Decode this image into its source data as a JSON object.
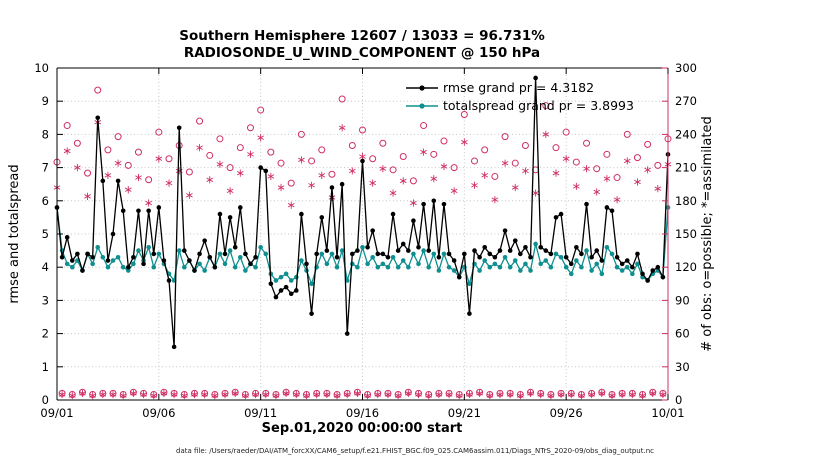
{
  "caption": "data file: /Users/raeder/DAI/ATM_forcXX/CAM6_setup/f.e21.FHIST_BGC.f09_025.CAM6assim.011/Diags_NTrS_2020-09/obs_diag_output.nc",
  "colors": {
    "rmse": "#000000",
    "totalspread": "#0f8f8f",
    "obs": "#ce2f63",
    "legend_text": "#2222cc",
    "grid": "#c6c6c6"
  },
  "chart_data": {
    "type": "line",
    "title": "Southern Hemisphere 12607 / 13033 = 96.731%",
    "subtitle": "RADIOSONDE_U_WIND_COMPONENT @ 150 hPa",
    "ylabel_left": "rmse and totalspread",
    "ylabel_right": "# of obs: o=possible; *=assimilated",
    "xlabel": "Sep.01,2020 00:00:00 start",
    "x_tick_labels": [
      "09/01",
      "09/06",
      "09/11",
      "09/16",
      "09/21",
      "09/26",
      "10/01"
    ],
    "x_tick_days": [
      0,
      5,
      10,
      15,
      20,
      25,
      30
    ],
    "x_range_days": [
      0,
      30
    ],
    "points_per_day": 4,
    "ylim_left": [
      0,
      10
    ],
    "ylim_right": [
      0,
      300
    ],
    "y_left_ticks": [
      0,
      1,
      2,
      3,
      4,
      5,
      6,
      7,
      8,
      9,
      10
    ],
    "y_right_ticks": [
      0,
      30,
      60,
      90,
      120,
      150,
      180,
      210,
      240,
      270,
      300
    ],
    "grid": true,
    "legend": {
      "position": "top-right-inside",
      "entries": [
        {
          "series": "rmse",
          "label": "rmse grand pr = 4.3182"
        },
        {
          "series": "totalspread",
          "label": "totalspread grand pr = 3.8993"
        }
      ]
    },
    "series": [
      {
        "name": "rmse",
        "axis": "left",
        "marker": "dot",
        "color": "#000000",
        "values": [
          5.8,
          4.3,
          4.9,
          4.2,
          4.4,
          3.9,
          4.4,
          4.3,
          8.5,
          6.6,
          4.2,
          5.0,
          6.6,
          5.7,
          4.0,
          4.3,
          5.7,
          4.1,
          5.7,
          4.4,
          5.8,
          4.2,
          3.6,
          1.6,
          8.2,
          4.5,
          4.2,
          3.9,
          4.4,
          4.8,
          4.3,
          4.0,
          5.6,
          4.4,
          5.5,
          4.6,
          5.8,
          4.4,
          4.1,
          4.3,
          7.0,
          6.9,
          3.5,
          3.1,
          3.3,
          3.4,
          3.2,
          3.3,
          5.6,
          4.1,
          2.6,
          4.4,
          5.5,
          4.5,
          6.4,
          4.3,
          6.5,
          2.0,
          4.4,
          4.5,
          7.2,
          4.6,
          5.1,
          4.4,
          4.4,
          4.3,
          5.6,
          4.5,
          4.7,
          4.5,
          5.4,
          4.6,
          5.9,
          4.5,
          6.0,
          4.3,
          5.9,
          4.4,
          4.2,
          3.7,
          4.4,
          2.6,
          4.5,
          4.3,
          4.6,
          4.4,
          4.3,
          4.5,
          5.1,
          4.5,
          4.8,
          4.4,
          4.6,
          4.3,
          9.7,
          4.6,
          4.5,
          4.4,
          5.5,
          5.6,
          4.3,
          4.1,
          4.6,
          4.4,
          5.9,
          4.3,
          4.5,
          4.2,
          5.8,
          5.7,
          4.3,
          4.1,
          4.2,
          4.0,
          4.4,
          3.8,
          3.6,
          3.9,
          4.0,
          3.7,
          7.4
        ]
      },
      {
        "name": "totalspread",
        "axis": "left",
        "marker": "dot",
        "color": "#0f8f8f",
        "values": [
          5.8,
          4.5,
          4.1,
          4.0,
          4.2,
          3.9,
          4.4,
          4.1,
          4.6,
          4.3,
          4.0,
          4.2,
          4.3,
          4.0,
          3.9,
          4.1,
          4.5,
          4.2,
          4.6,
          4.0,
          4.4,
          4.1,
          3.8,
          3.6,
          4.5,
          4.0,
          4.2,
          3.9,
          4.1,
          3.9,
          4.3,
          4.0,
          4.4,
          4.1,
          4.5,
          4.0,
          4.3,
          3.9,
          4.1,
          4.0,
          4.6,
          4.4,
          3.8,
          3.6,
          3.7,
          3.8,
          3.6,
          3.7,
          4.2,
          3.9,
          3.5,
          4.0,
          4.4,
          4.1,
          4.4,
          4.0,
          4.5,
          3.6,
          4.1,
          4.0,
          4.6,
          4.1,
          4.3,
          4.0,
          4.1,
          4.0,
          4.3,
          4.0,
          4.2,
          4.0,
          4.4,
          4.1,
          4.5,
          4.0,
          4.4,
          3.9,
          4.4,
          4.0,
          3.9,
          3.7,
          4.0,
          3.5,
          4.1,
          3.9,
          4.2,
          4.0,
          4.1,
          4.0,
          4.3,
          4.0,
          4.2,
          3.9,
          4.1,
          3.9,
          4.7,
          4.1,
          4.2,
          4.0,
          4.4,
          4.3,
          4.0,
          3.8,
          4.2,
          4.0,
          4.5,
          3.9,
          4.1,
          3.8,
          4.6,
          4.4,
          4.0,
          3.9,
          4.0,
          3.8,
          4.1,
          3.7,
          3.6,
          3.8,
          3.9,
          3.7,
          5.8
        ]
      },
      {
        "name": "possible",
        "axis": "right",
        "marker": "circle",
        "color": "#ce2f63",
        "values": [
          215,
          6,
          248,
          5,
          232,
          7,
          205,
          5,
          280,
          6,
          226,
          6,
          238,
          5,
          212,
          7,
          224,
          6,
          199,
          5,
          242,
          7,
          218,
          6,
          230,
          5,
          206,
          6,
          252,
          6,
          221,
          5,
          236,
          6,
          210,
          7,
          228,
          5,
          246,
          6,
          262,
          6,
          224,
          5,
          214,
          7,
          196,
          6,
          240,
          5,
          216,
          6,
          226,
          6,
          204,
          5,
          272,
          6,
          230,
          7,
          244,
          5,
          218,
          6,
          232,
          6,
          208,
          5,
          220,
          7,
          198,
          6,
          248,
          5,
          222,
          6,
          234,
          6,
          210,
          5,
          258,
          6,
          216,
          7,
          226,
          5,
          202,
          6,
          238,
          6,
          214,
          5,
          230,
          7,
          208,
          6,
          266,
          5,
          228,
          6,
          242,
          6,
          215,
          5,
          232,
          6,
          209,
          7,
          222,
          5,
          201,
          6,
          240,
          6,
          219,
          5,
          231,
          7,
          212,
          6,
          236
        ]
      },
      {
        "name": "assimilated",
        "axis": "right",
        "marker": "asterisk",
        "color": "#ce2f63",
        "values": [
          192,
          5,
          225,
          4,
          210,
          6,
          184,
          4,
          251,
          5,
          203,
          5,
          214,
          4,
          190,
          6,
          201,
          5,
          178,
          4,
          218,
          6,
          196,
          5,
          207,
          4,
          185,
          5,
          228,
          5,
          199,
          4,
          213,
          5,
          189,
          6,
          205,
          4,
          222,
          5,
          237,
          5,
          202,
          4,
          192,
          6,
          176,
          5,
          217,
          4,
          194,
          5,
          203,
          5,
          183,
          4,
          246,
          5,
          207,
          6,
          220,
          4,
          196,
          5,
          209,
          5,
          187,
          4,
          198,
          6,
          178,
          5,
          224,
          4,
          200,
          5,
          211,
          5,
          189,
          4,
          233,
          5,
          194,
          6,
          203,
          4,
          181,
          5,
          214,
          5,
          192,
          4,
          207,
          6,
          187,
          5,
          240,
          4,
          205,
          5,
          218,
          5,
          193,
          4,
          209,
          5,
          188,
          6,
          200,
          4,
          181,
          5,
          216,
          5,
          197,
          4,
          208,
          6,
          191,
          5,
          213
        ]
      }
    ]
  }
}
